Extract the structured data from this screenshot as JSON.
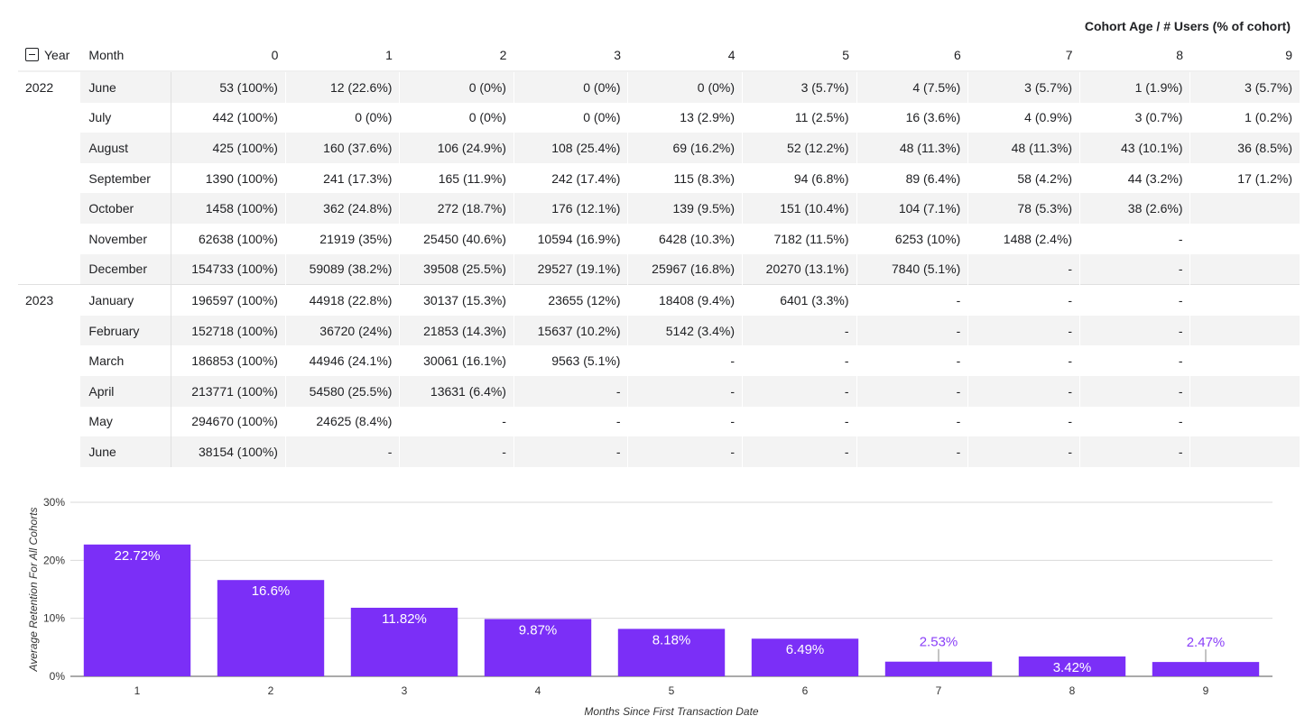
{
  "header": {
    "title": "Cohort Age / # Users (% of cohort)"
  },
  "table": {
    "year_header": "Year",
    "month_header": "Month",
    "columns": [
      "0",
      "1",
      "2",
      "3",
      "4",
      "5",
      "6",
      "7",
      "8",
      "9"
    ],
    "rows": [
      {
        "year": "2022",
        "month": "June",
        "cells": [
          "53 (100%)",
          "12 (22.6%)",
          "0 (0%)",
          "0 (0%)",
          "0 (0%)",
          "3 (5.7%)",
          "4 (7.5%)",
          "3 (5.7%)",
          "1 (1.9%)",
          "3 (5.7%)"
        ]
      },
      {
        "year": "",
        "month": "July",
        "cells": [
          "442 (100%)",
          "0 (0%)",
          "0 (0%)",
          "0 (0%)",
          "13 (2.9%)",
          "11 (2.5%)",
          "16 (3.6%)",
          "4 (0.9%)",
          "3 (0.7%)",
          "1 (0.2%)"
        ]
      },
      {
        "year": "",
        "month": "August",
        "cells": [
          "425 (100%)",
          "160 (37.6%)",
          "106 (24.9%)",
          "108 (25.4%)",
          "69 (16.2%)",
          "52 (12.2%)",
          "48 (11.3%)",
          "48 (11.3%)",
          "43 (10.1%)",
          "36 (8.5%)"
        ]
      },
      {
        "year": "",
        "month": "September",
        "cells": [
          "1390 (100%)",
          "241 (17.3%)",
          "165 (11.9%)",
          "242 (17.4%)",
          "115 (8.3%)",
          "94 (6.8%)",
          "89 (6.4%)",
          "58 (4.2%)",
          "44 (3.2%)",
          "17 (1.2%)"
        ]
      },
      {
        "year": "",
        "month": "October",
        "cells": [
          "1458 (100%)",
          "362 (24.8%)",
          "272 (18.7%)",
          "176 (12.1%)",
          "139 (9.5%)",
          "151 (10.4%)",
          "104 (7.1%)",
          "78 (5.3%)",
          "38 (2.6%)",
          ""
        ]
      },
      {
        "year": "",
        "month": "November",
        "cells": [
          "62638 (100%)",
          "21919 (35%)",
          "25450 (40.6%)",
          "10594 (16.9%)",
          "6428 (10.3%)",
          "7182 (11.5%)",
          "6253 (10%)",
          "1488 (2.4%)",
          "-",
          ""
        ]
      },
      {
        "year": "",
        "month": "December",
        "cells": [
          "154733 (100%)",
          "59089 (38.2%)",
          "39508 (25.5%)",
          "29527 (19.1%)",
          "25967 (16.8%)",
          "20270 (13.1%)",
          "7840 (5.1%)",
          "-",
          "-",
          ""
        ]
      },
      {
        "year": "2023",
        "month": "January",
        "cells": [
          "196597 (100%)",
          "44918 (22.8%)",
          "30137 (15.3%)",
          "23655 (12%)",
          "18408 (9.4%)",
          "6401 (3.3%)",
          "-",
          "-",
          "-",
          ""
        ]
      },
      {
        "year": "",
        "month": "February",
        "cells": [
          "152718 (100%)",
          "36720 (24%)",
          "21853 (14.3%)",
          "15637 (10.2%)",
          "5142 (3.4%)",
          "-",
          "-",
          "-",
          "-",
          ""
        ]
      },
      {
        "year": "",
        "month": "March",
        "cells": [
          "186853 (100%)",
          "44946 (24.1%)",
          "30061 (16.1%)",
          "9563 (5.1%)",
          "-",
          "-",
          "-",
          "-",
          "-",
          ""
        ]
      },
      {
        "year": "",
        "month": "April",
        "cells": [
          "213771 (100%)",
          "54580 (25.5%)",
          "13631 (6.4%)",
          "-",
          "-",
          "-",
          "-",
          "-",
          "-",
          ""
        ]
      },
      {
        "year": "",
        "month": "May",
        "cells": [
          "294670 (100%)",
          "24625 (8.4%)",
          "-",
          "-",
          "-",
          "-",
          "-",
          "-",
          "-",
          ""
        ]
      },
      {
        "year": "",
        "month": "June",
        "cells": [
          "38154 (100%)",
          "-",
          "-",
          "-",
          "-",
          "-",
          "-",
          "-",
          "-",
          ""
        ]
      }
    ]
  },
  "chart_data": {
    "type": "bar",
    "categories": [
      "1",
      "2",
      "3",
      "4",
      "5",
      "6",
      "7",
      "8",
      "9"
    ],
    "values": [
      22.72,
      16.6,
      11.82,
      9.87,
      8.18,
      6.49,
      2.53,
      3.42,
      2.47
    ],
    "value_labels": [
      "22.72%",
      "16.6%",
      "11.82%",
      "9.87%",
      "8.18%",
      "6.49%",
      "2.53%",
      "3.42%",
      "2.47%"
    ],
    "xlabel": "Months Since First Transaction Date",
    "ylabel": "Average Retention For All Cohorts",
    "yticks": [
      "0%",
      "10%",
      "20%",
      "30%"
    ],
    "ylim": [
      0,
      30
    ],
    "grid": true,
    "bar_color": "#7b2ff7",
    "label_color_inside": "#ffffff",
    "label_color_outside": "#8a3ff8"
  }
}
